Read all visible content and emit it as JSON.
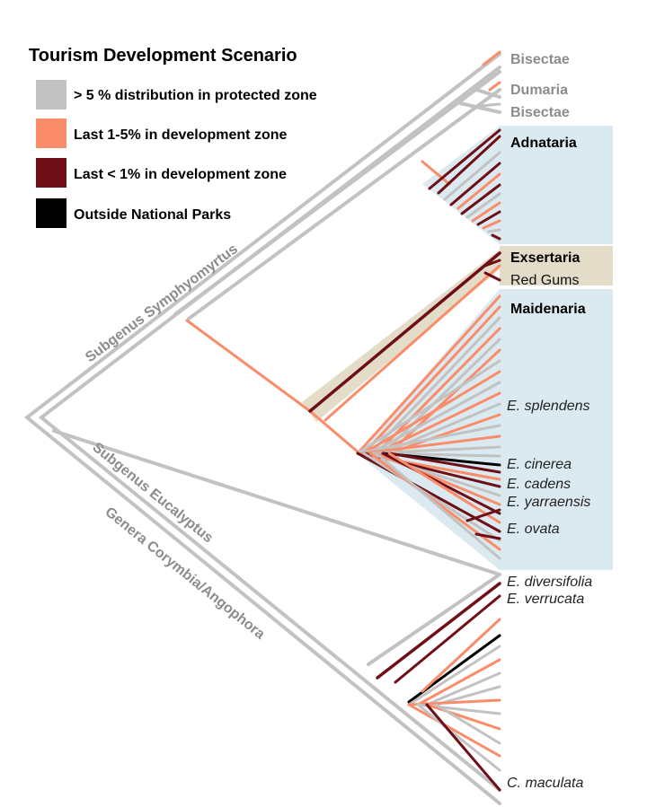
{
  "legend": {
    "title": "Tourism Development Scenario",
    "items": [
      {
        "label": "> 5 % distribution in protected zone",
        "color": "#c2c2c2"
      },
      {
        "label": "Last 1-5% in development zone",
        "color": "#fb8c69"
      },
      {
        "label": "Last < 1% in development zone",
        "color": "#6e0f17"
      },
      {
        "label": "Outside National Parks",
        "color": "#000000"
      }
    ]
  },
  "clades": {
    "bisectae_top": "Bisectae",
    "dumaria": "Dumaria",
    "bisectae_bottom": "Bisectae",
    "adnataria": "Adnataria",
    "exsertaria": "Exsertaria",
    "red_gums": "Red Gums",
    "maidenaria": "Maidenaria"
  },
  "species": {
    "splendens": "E. splendens",
    "cinerea": "E. cinerea",
    "cadens": "E. cadens",
    "yarraensis": "E. yarraensis",
    "ovata": "E. ovata",
    "diversifolia": "E. diversifolia",
    "verrucata": "E. verrucata",
    "maculata": "C. maculata"
  },
  "subgenera": {
    "symphyomyrtus": "Subgenus Symphyomyrtus",
    "eucalyptus": "Subgenus Eucalyptus",
    "corymbia": "Genera Corymbia/Angophora"
  },
  "colors": {
    "grey": "#c2c2c2",
    "orange": "#fb8c69",
    "maroon": "#6e0f17",
    "black": "#000000",
    "blue_band": "#dbeaf0",
    "tan_band": "#e3dcc8"
  }
}
